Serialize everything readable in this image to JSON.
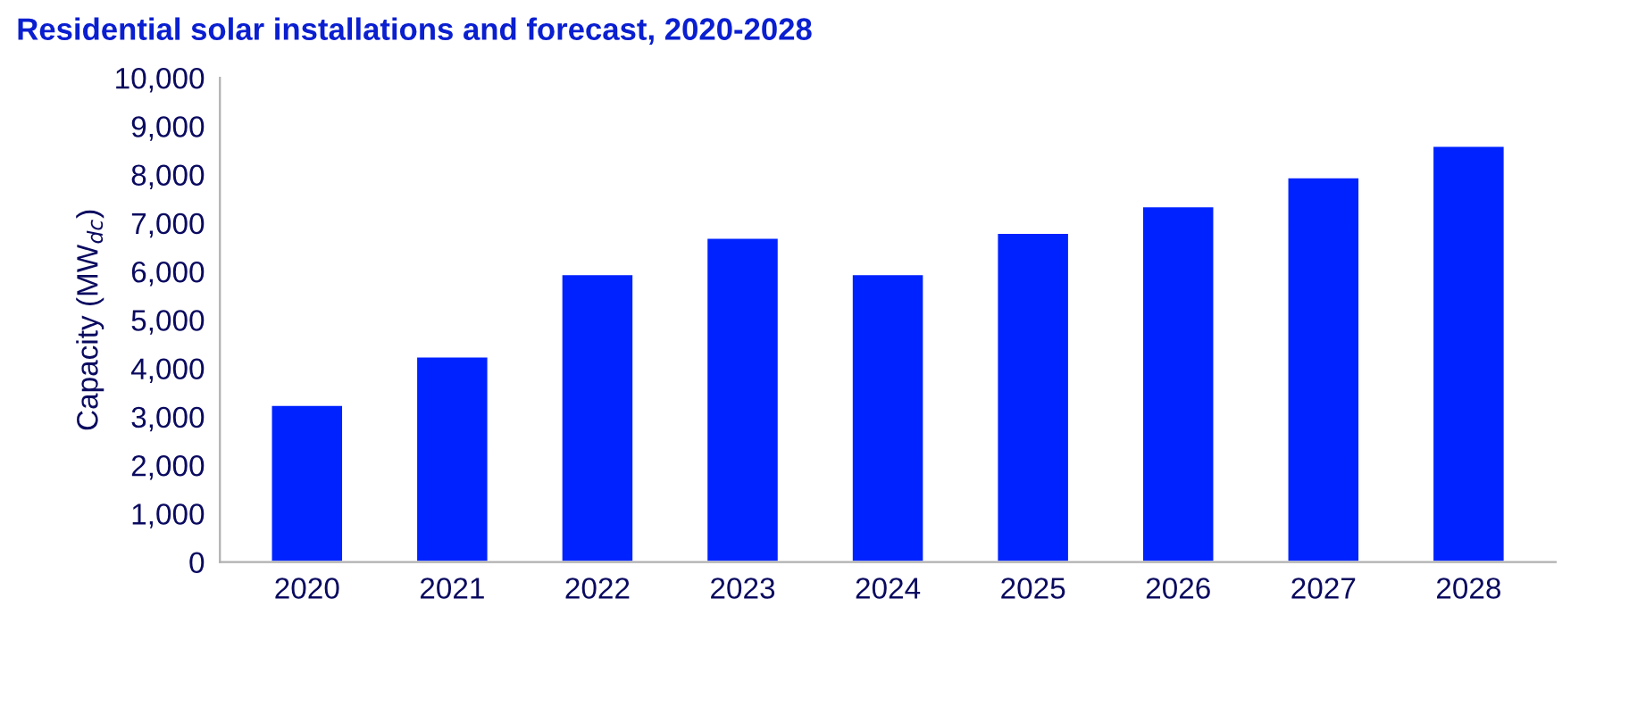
{
  "chart_data": {
    "type": "bar",
    "title": "Residential solar installations and forecast, 2020-2028",
    "ylabel": "Capacity (MW$_{dc}$)",
    "categories": [
      "2020",
      "2021",
      "2022",
      "2023",
      "2024",
      "2025",
      "2026",
      "2027",
      "2028"
    ],
    "values": [
      3250,
      4250,
      5950,
      6700,
      5950,
      6800,
      7350,
      7950,
      8600
    ],
    "color": "#0022ff",
    "ylim": [
      0,
      10000
    ],
    "yticks": [
      {
        "value": 0,
        "label": "0"
      },
      {
        "value": 1000,
        "label": "1,000"
      },
      {
        "value": 2000,
        "label": "2,000"
      },
      {
        "value": 3000,
        "label": "3,000"
      },
      {
        "value": 4000,
        "label": "4,000"
      },
      {
        "value": 5000,
        "label": "5,000"
      },
      {
        "value": 6000,
        "label": "6,000"
      },
      {
        "value": 7000,
        "label": "7,000"
      },
      {
        "value": 8000,
        "label": "8,000"
      },
      {
        "value": 9000,
        "label": "9,000"
      },
      {
        "value": 10000,
        "label": "10,000"
      }
    ],
    "grid": false,
    "legend": false
  }
}
